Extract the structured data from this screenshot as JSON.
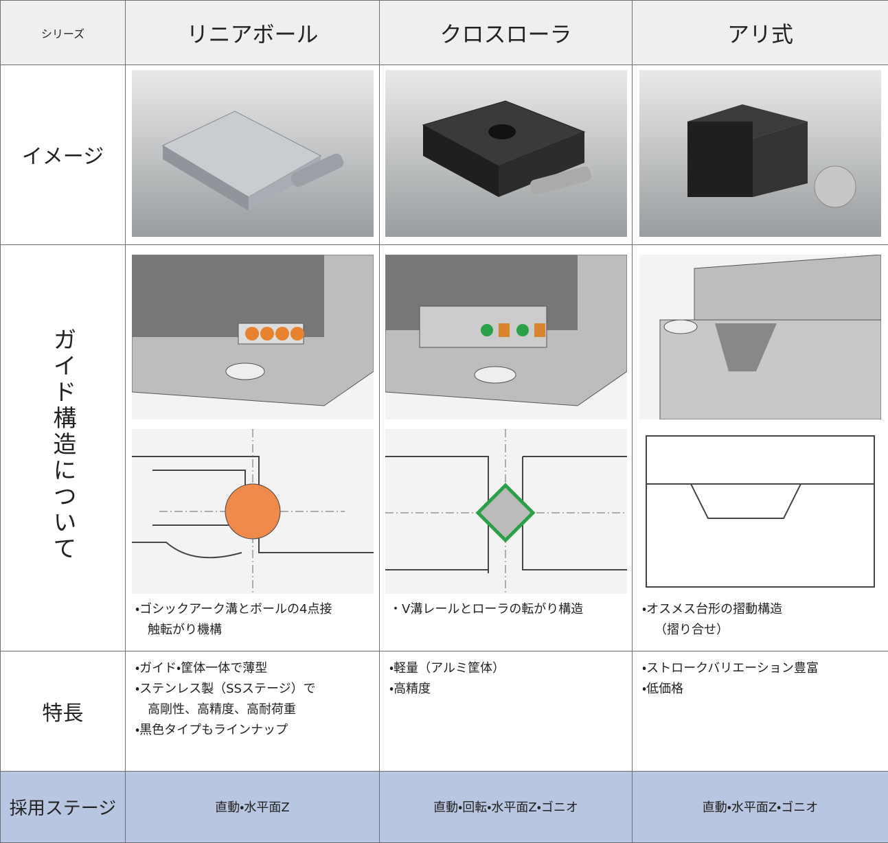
{
  "table": {
    "header": [
      "シリーズ",
      "リニアボール",
      "クロスローラ",
      "アリ式"
    ],
    "image_row": {
      "label": "イメージ"
    },
    "guide_row": {
      "label": "ガイド構造について",
      "cells": [
        [
          "・ゴシックアーク溝とボールの4点接",
          "触転がり機構"
        ],
        [
          "・V溝レールとローラの転がり構造"
        ],
        [
          "・オスメス台形の摺動構造",
          "（摺り合せ）"
        ]
      ]
    },
    "feature_row": {
      "label": "特長",
      "cells": [
        [
          "・ガイド・筐体一体で薄型",
          "・ステンレス製（SSステージ）で",
          "高剛性、高精度、高耐荷重",
          "・黒色タイプもラインナップ"
        ],
        [
          "・軽量（アルミ筐体）",
          "・高精度"
        ],
        [
          "・ストロークバリエーション豊富",
          "・低価格"
        ]
      ]
    },
    "stage_row": {
      "label": "採用ステージ",
      "cells": [
        "直動・水平面Z",
        "直動・回転・水平面Z・ゴニオ",
        "直動・水平面Z・ゴニオ"
      ]
    }
  }
}
